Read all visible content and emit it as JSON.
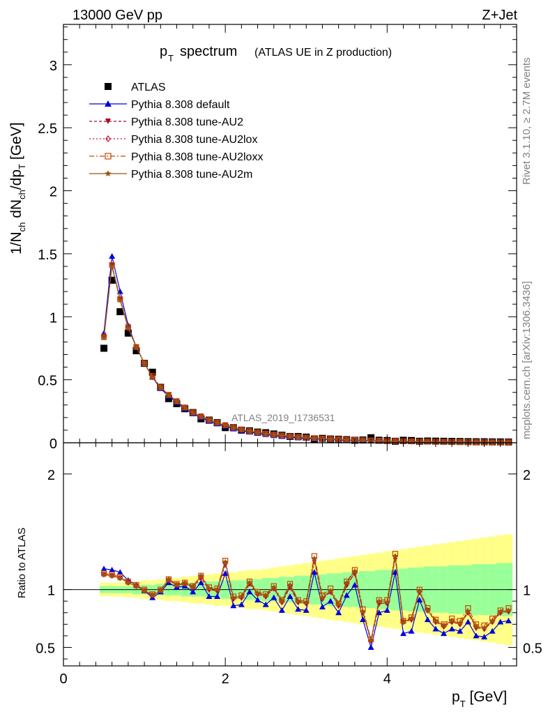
{
  "header": {
    "energy_label": "13000 GeV pp",
    "process_label": "Z+Jet"
  },
  "plot_title": {
    "main": "p",
    "main_sub": "T",
    "main_rest": "spectrum",
    "suffix": "(ATLAS UE in Z production)"
  },
  "side_labels": {
    "rivet": "Rivet 3.1.10, ≥ 2.7M events",
    "mcplots": "mcplots.cern.ch [arXiv:1306.3436]"
  },
  "analysis_id": "ATLAS_2019_I1736531",
  "colors": {
    "atlas": "#000000",
    "default": "#0000dd",
    "au2": "#aa0022",
    "au2lox": "#cc1133",
    "au2loxx": "#cc4400",
    "au2m": "#995511",
    "band_inner": "#99ff99",
    "band_outer": "#ffff88"
  },
  "chart_data": [
    {
      "type": "scatter",
      "title": "p_T spectrum (ATLAS UE in Z production)",
      "ylabel": "1/N_ch dN_ch/dp_T [GeV]",
      "xlabel": "",
      "xlim": [
        0,
        5.6
      ],
      "ylim": [
        0,
        3.32
      ],
      "x_ticks": [
        0,
        2,
        4
      ],
      "y_ticks": [
        0,
        0.5,
        1,
        1.5,
        2,
        2.5,
        3
      ],
      "y_tick_labels": [
        "0",
        "0.5",
        "1",
        "1.5",
        "2",
        "2.5",
        "3"
      ],
      "legend_position": "top-left",
      "x": [
        0.5,
        0.6,
        0.7,
        0.8,
        0.9,
        1.0,
        1.1,
        1.2,
        1.3,
        1.4,
        1.5,
        1.6,
        1.7,
        1.8,
        1.9,
        2.0,
        2.1,
        2.2,
        2.3,
        2.4,
        2.5,
        2.6,
        2.7,
        2.8,
        2.9,
        3.0,
        3.1,
        3.2,
        3.3,
        3.4,
        3.5,
        3.6,
        3.7,
        3.8,
        3.9,
        4.0,
        4.1,
        4.2,
        4.3,
        4.4,
        4.5,
        4.6,
        4.7,
        4.8,
        4.9,
        5.0,
        5.1,
        5.2,
        5.3,
        5.4,
        5.5
      ],
      "series": [
        {
          "name": "ATLAS",
          "marker": "square",
          "values": [
            0.75,
            1.29,
            1.04,
            0.87,
            0.73,
            0.63,
            0.56,
            0.44,
            0.35,
            0.31,
            0.27,
            0.24,
            0.19,
            0.18,
            0.16,
            0.12,
            0.12,
            0.1,
            0.095,
            0.085,
            0.08,
            0.07,
            0.06,
            0.05,
            0.05,
            0.045,
            0.03,
            0.035,
            0.03,
            0.028,
            0.025,
            0.02,
            0.022,
            0.04,
            0.02,
            0.018,
            0.012,
            0.02,
            0.018,
            0.012,
            0.014,
            0.013,
            0.012,
            0.011,
            0.01,
            0.009,
            0.008,
            0.008,
            0.007,
            0.007,
            0.006
          ]
        },
        {
          "name": "Pythia 8.308 default",
          "marker": "triangle-up",
          "values": [
            0.87,
            1.48,
            1.2,
            0.93,
            0.76,
            0.63,
            0.52,
            0.43,
            0.37,
            0.32,
            0.27,
            0.23,
            0.2,
            0.17,
            0.15,
            0.13,
            0.11,
            0.095,
            0.085,
            0.075,
            0.065,
            0.057,
            0.05,
            0.044,
            0.039,
            0.035,
            0.031,
            0.028,
            0.025,
            0.022,
            0.02,
            0.018,
            0.016,
            0.014,
            0.012,
            0.011,
            0.01,
            0.009,
            0.008,
            0.008,
            0.007,
            0.006,
            0.006,
            0.005,
            0.005,
            0.004,
            0.004,
            0.004,
            0.003,
            0.003,
            0.003
          ]
        },
        {
          "name": "Pythia 8.308 tune-AU2",
          "marker": "triangle-down",
          "values": [
            0.84,
            1.41,
            1.14,
            0.91,
            0.76,
            0.63,
            0.52,
            0.44,
            0.38,
            0.33,
            0.28,
            0.24,
            0.21,
            0.18,
            0.16,
            0.14,
            0.12,
            0.105,
            0.092,
            0.082,
            0.072,
            0.064,
            0.057,
            0.05,
            0.045,
            0.04,
            0.036,
            0.032,
            0.029,
            0.026,
            0.023,
            0.021,
            0.019,
            0.017,
            0.015,
            0.013,
            0.012,
            0.011,
            0.01,
            0.009,
            0.008,
            0.007,
            0.007,
            0.006,
            0.006,
            0.005,
            0.005,
            0.004,
            0.004,
            0.004,
            0.003
          ]
        },
        {
          "name": "Pythia 8.308 tune-AU2lox",
          "marker": "diamond-open",
          "values": [
            0.84,
            1.41,
            1.14,
            0.91,
            0.76,
            0.63,
            0.52,
            0.44,
            0.38,
            0.33,
            0.28,
            0.24,
            0.21,
            0.18,
            0.16,
            0.14,
            0.12,
            0.105,
            0.092,
            0.082,
            0.072,
            0.064,
            0.057,
            0.05,
            0.045,
            0.04,
            0.036,
            0.032,
            0.029,
            0.026,
            0.023,
            0.021,
            0.019,
            0.017,
            0.015,
            0.013,
            0.012,
            0.011,
            0.01,
            0.009,
            0.008,
            0.007,
            0.007,
            0.006,
            0.006,
            0.005,
            0.005,
            0.004,
            0.004,
            0.004,
            0.003
          ]
        },
        {
          "name": "Pythia 8.308 tune-AU2loxx",
          "marker": "square-open",
          "values": [
            0.84,
            1.41,
            1.14,
            0.92,
            0.76,
            0.63,
            0.53,
            0.44,
            0.38,
            0.33,
            0.28,
            0.24,
            0.21,
            0.18,
            0.16,
            0.14,
            0.12,
            0.106,
            0.093,
            0.083,
            0.073,
            0.065,
            0.058,
            0.051,
            0.046,
            0.041,
            0.037,
            0.033,
            0.03,
            0.027,
            0.024,
            0.022,
            0.02,
            0.018,
            0.016,
            0.014,
            0.013,
            0.012,
            0.011,
            0.01,
            0.009,
            0.008,
            0.007,
            0.007,
            0.006,
            0.006,
            0.005,
            0.005,
            0.004,
            0.004,
            0.004
          ]
        },
        {
          "name": "Pythia 8.308 tune-AU2m",
          "marker": "star",
          "values": [
            0.83,
            1.4,
            1.13,
            0.91,
            0.76,
            0.63,
            0.52,
            0.44,
            0.38,
            0.33,
            0.28,
            0.24,
            0.21,
            0.18,
            0.16,
            0.14,
            0.12,
            0.105,
            0.092,
            0.082,
            0.072,
            0.064,
            0.057,
            0.05,
            0.045,
            0.04,
            0.036,
            0.032,
            0.029,
            0.026,
            0.023,
            0.021,
            0.019,
            0.017,
            0.015,
            0.013,
            0.012,
            0.011,
            0.01,
            0.009,
            0.008,
            0.007,
            0.007,
            0.006,
            0.006,
            0.005,
            0.005,
            0.004,
            0.004,
            0.004,
            0.003
          ]
        }
      ]
    },
    {
      "type": "line",
      "title": "",
      "ylabel": "Ratio to ATLAS",
      "xlabel": "p_T [GeV]",
      "xlim": [
        0,
        5.6
      ],
      "ylim": [
        0.34,
        2.27
      ],
      "x_ticks": [
        0,
        2,
        4
      ],
      "x_tick_labels": [
        "0",
        "2",
        "4"
      ],
      "y_ticks": [
        0.5,
        1,
        2
      ],
      "y_tick_labels": [
        "0.5",
        "1",
        "2"
      ],
      "reference_line": 1,
      "x": [
        0.5,
        0.6,
        0.7,
        0.8,
        0.9,
        1.0,
        1.1,
        1.2,
        1.3,
        1.4,
        1.5,
        1.6,
        1.7,
        1.8,
        1.9,
        2.0,
        2.1,
        2.2,
        2.3,
        2.4,
        2.5,
        2.6,
        2.7,
        2.8,
        2.9,
        3.0,
        3.1,
        3.2,
        3.3,
        3.4,
        3.5,
        3.6,
        3.7,
        3.8,
        3.9,
        4.0,
        4.1,
        4.2,
        4.3,
        4.4,
        4.5,
        4.6,
        4.7,
        4.8,
        4.9,
        5.0,
        5.1,
        5.2,
        5.3,
        5.4,
        5.5
      ],
      "band_inner_halfwidth": [
        0.03,
        0.03,
        0.03,
        0.03,
        0.04,
        0.04,
        0.04,
        0.05,
        0.05,
        0.05,
        0.06,
        0.06,
        0.06,
        0.07,
        0.07,
        0.08,
        0.08,
        0.08,
        0.09,
        0.09,
        0.1,
        0.1,
        0.11,
        0.11,
        0.12,
        0.12,
        0.13,
        0.13,
        0.14,
        0.14,
        0.15,
        0.15,
        0.16,
        0.16,
        0.17,
        0.17,
        0.18,
        0.18,
        0.19,
        0.19,
        0.2,
        0.2,
        0.2,
        0.21,
        0.21,
        0.21,
        0.22,
        0.22,
        0.22,
        0.23,
        0.23
      ],
      "band_outer_halfwidth": [
        0.06,
        0.06,
        0.06,
        0.07,
        0.07,
        0.08,
        0.08,
        0.09,
        0.1,
        0.1,
        0.11,
        0.12,
        0.12,
        0.13,
        0.14,
        0.14,
        0.15,
        0.16,
        0.17,
        0.17,
        0.18,
        0.19,
        0.2,
        0.21,
        0.22,
        0.23,
        0.24,
        0.25,
        0.26,
        0.27,
        0.28,
        0.29,
        0.3,
        0.31,
        0.32,
        0.33,
        0.34,
        0.35,
        0.36,
        0.37,
        0.38,
        0.39,
        0.4,
        0.41,
        0.42,
        0.43,
        0.44,
        0.45,
        0.46,
        0.47,
        0.48
      ],
      "series": [
        {
          "name": "Pythia 8.308 default",
          "values": [
            1.18,
            1.17,
            1.15,
            1.08,
            1.04,
            0.99,
            0.93,
            0.98,
            1.06,
            1.02,
            1.03,
            0.98,
            1.06,
            0.94,
            0.94,
            1.14,
            0.86,
            0.87,
            0.98,
            0.91,
            0.87,
            0.93,
            0.82,
            0.94,
            0.83,
            0.82,
            1.15,
            0.85,
            0.9,
            0.8,
            0.95,
            1.04,
            0.74,
            0.5,
            0.8,
            0.82,
            1.15,
            0.62,
            0.64,
            0.91,
            0.74,
            0.66,
            0.62,
            0.66,
            0.64,
            0.72,
            0.6,
            0.59,
            0.64,
            0.72,
            0.73
          ]
        },
        {
          "name": "Pythia 8.308 tune-AU2",
          "values": [
            1.13,
            1.12,
            1.1,
            1.06,
            1.03,
            0.99,
            0.95,
            0.99,
            1.08,
            1.04,
            1.05,
            1.02,
            1.1,
            1.0,
            0.99,
            1.22,
            0.92,
            0.93,
            1.05,
            0.96,
            0.94,
            1.01,
            0.89,
            1.02,
            0.89,
            0.88,
            1.25,
            0.92,
            0.98,
            0.86,
            1.04,
            1.14,
            0.8,
            0.55,
            0.88,
            0.88,
            1.27,
            0.72,
            0.74,
            0.98,
            0.82,
            0.72,
            0.68,
            0.72,
            0.7,
            0.8,
            0.67,
            0.66,
            0.72,
            0.8,
            0.81
          ]
        },
        {
          "name": "Pythia 8.308 tune-AU2lox",
          "values": [
            1.13,
            1.12,
            1.1,
            1.06,
            1.03,
            0.99,
            0.95,
            0.99,
            1.08,
            1.04,
            1.05,
            1.02,
            1.1,
            1.0,
            0.99,
            1.22,
            0.92,
            0.93,
            1.05,
            0.96,
            0.94,
            1.01,
            0.89,
            1.02,
            0.89,
            0.88,
            1.25,
            0.92,
            0.98,
            0.86,
            1.04,
            1.14,
            0.8,
            0.56,
            0.88,
            0.88,
            1.27,
            0.72,
            0.74,
            0.98,
            0.82,
            0.72,
            0.68,
            0.72,
            0.7,
            0.8,
            0.67,
            0.66,
            0.72,
            0.8,
            0.81
          ]
        },
        {
          "name": "Pythia 8.308 tune-AU2loxx",
          "values": [
            1.14,
            1.13,
            1.11,
            1.07,
            1.04,
            1.0,
            0.96,
            1.0,
            1.09,
            1.05,
            1.06,
            1.03,
            1.12,
            1.02,
            1.01,
            1.25,
            0.94,
            0.95,
            1.07,
            0.98,
            0.96,
            1.03,
            0.91,
            1.05,
            0.91,
            0.9,
            1.29,
            0.95,
            1.01,
            0.88,
            1.07,
            1.17,
            0.83,
            0.57,
            0.91,
            0.91,
            1.31,
            0.73,
            0.76,
            1.0,
            0.84,
            0.74,
            0.7,
            0.75,
            0.73,
            0.84,
            0.7,
            0.69,
            0.75,
            0.82,
            0.84
          ]
        },
        {
          "name": "Pythia 8.308 tune-AU2m",
          "values": [
            1.13,
            1.12,
            1.1,
            1.06,
            1.03,
            0.99,
            0.95,
            0.99,
            1.09,
            1.04,
            1.06,
            1.03,
            1.12,
            1.01,
            1.0,
            1.24,
            0.93,
            0.94,
            1.06,
            0.97,
            0.95,
            1.02,
            0.9,
            1.04,
            0.9,
            0.89,
            1.27,
            0.93,
            0.99,
            0.87,
            1.06,
            1.16,
            0.81,
            0.56,
            0.9,
            0.89,
            1.29,
            0.72,
            0.75,
            0.99,
            0.82,
            0.73,
            0.69,
            0.73,
            0.71,
            0.81,
            0.68,
            0.67,
            0.73,
            0.81,
            0.82
          ]
        }
      ]
    }
  ],
  "legend_labels": [
    "ATLAS",
    "Pythia 8.308 default",
    "Pythia 8.308 tune-AU2",
    "Pythia 8.308 tune-AU2lox",
    "Pythia 8.308 tune-AU2loxx",
    "Pythia 8.308 tune-AU2m"
  ]
}
